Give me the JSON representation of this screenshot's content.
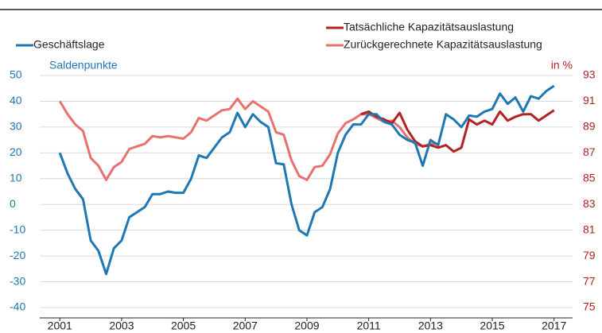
{
  "chart_data": {
    "type": "line",
    "y_label": "Saldenpunkte",
    "y2_label": "in %",
    "x": [
      2001,
      2001.25,
      2001.5,
      2001.75,
      2002,
      2002.25,
      2002.5,
      2002.75,
      2003,
      2003.25,
      2003.5,
      2003.75,
      2004,
      2004.25,
      2004.5,
      2004.75,
      2005,
      2005.25,
      2005.5,
      2005.75,
      2006,
      2006.25,
      2006.5,
      2006.75,
      2007,
      2007.25,
      2007.5,
      2007.75,
      2008,
      2008.25,
      2008.5,
      2008.75,
      2009,
      2009.25,
      2009.5,
      2009.75,
      2010,
      2010.25,
      2010.5,
      2010.75,
      2011,
      2011.25,
      2011.5,
      2011.75,
      2012,
      2012.25,
      2012.5,
      2012.75,
      2013,
      2013.25,
      2013.5,
      2013.75,
      2014,
      2014.25,
      2014.5,
      2014.75,
      2015,
      2015.25,
      2015.5,
      2015.75,
      2016,
      2016.25,
      2016.5,
      2016.75,
      2017
    ],
    "series": [
      {
        "name": "Geschäftslage",
        "color": "#1f77b4",
        "values": [
          20,
          12,
          6,
          2,
          -14,
          -18,
          -27,
          -17,
          -14,
          -5,
          -3,
          -1,
          4,
          4,
          5,
          4.5,
          4.5,
          10,
          19,
          18,
          22,
          26,
          28,
          35.5,
          30,
          35,
          32,
          30,
          16,
          15.5,
          0,
          -10,
          -12,
          -3,
          -1,
          6,
          20,
          27,
          31,
          31,
          35,
          35,
          32,
          31,
          27,
          25,
          24,
          15,
          25,
          23,
          35,
          33,
          30,
          34.5,
          34,
          36,
          37,
          43,
          39,
          41.5,
          36,
          42,
          41,
          44,
          46
        ]
      },
      {
        "name": "Tatsächliche Kapazitätsauslastung",
        "color": "#b22222",
        "axis": "y2",
        "values": [
          null,
          null,
          null,
          null,
          null,
          null,
          null,
          null,
          null,
          null,
          null,
          null,
          null,
          null,
          null,
          null,
          null,
          null,
          null,
          null,
          null,
          null,
          null,
          null,
          null,
          null,
          null,
          null,
          null,
          null,
          null,
          null,
          null,
          null,
          null,
          null,
          null,
          null,
          null,
          90,
          90.2,
          89.8,
          89.6,
          89.3,
          90.1,
          88.8,
          87.9,
          87.5,
          87.6,
          87.4,
          87.6,
          87.1,
          87.4,
          89.6,
          89.2,
          89.5,
          89.2,
          90.2,
          89.5,
          89.8,
          90,
          90,
          89.5,
          89.9,
          90.3
        ]
      },
      {
        "name": "Zurückgerechnete Kapazitätsauslastung",
        "color": "#e8716f",
        "axis": "y2",
        "values": [
          91,
          90,
          89.2,
          88.7,
          86.6,
          86,
          84.9,
          85.9,
          86.3,
          87.3,
          87.5,
          87.7,
          88.3,
          88.2,
          88.3,
          88.2,
          88.1,
          88.6,
          89.7,
          89.5,
          89.9,
          90.3,
          90.4,
          91.2,
          90.4,
          91,
          90.6,
          90.2,
          88.6,
          88.4,
          86.4,
          85.2,
          84.9,
          85.9,
          86,
          86.9,
          88.5,
          89.3,
          89.6,
          90,
          90,
          89.7,
          89.4,
          89.5,
          89,
          88.2,
          87.7,
          87.5,
          87.7,
          87.7,
          null,
          null,
          null,
          null,
          null,
          null,
          null,
          null,
          null,
          null,
          null,
          null,
          null,
          null,
          null
        ]
      }
    ],
    "xlim": [
      2000.35,
      2017.6
    ],
    "xticks": [
      2001,
      2003,
      2005,
      2007,
      2009,
      2011,
      2013,
      2015,
      2017
    ],
    "ylim": [
      -40,
      50
    ],
    "yticks": [
      -40,
      -30,
      -20,
      -10,
      0,
      10,
      20,
      30,
      40,
      50
    ],
    "y2lim": [
      75,
      93
    ],
    "y2ticks": [
      75,
      77,
      79,
      81,
      83,
      85,
      87,
      89,
      91,
      93
    ],
    "grid": true
  }
}
